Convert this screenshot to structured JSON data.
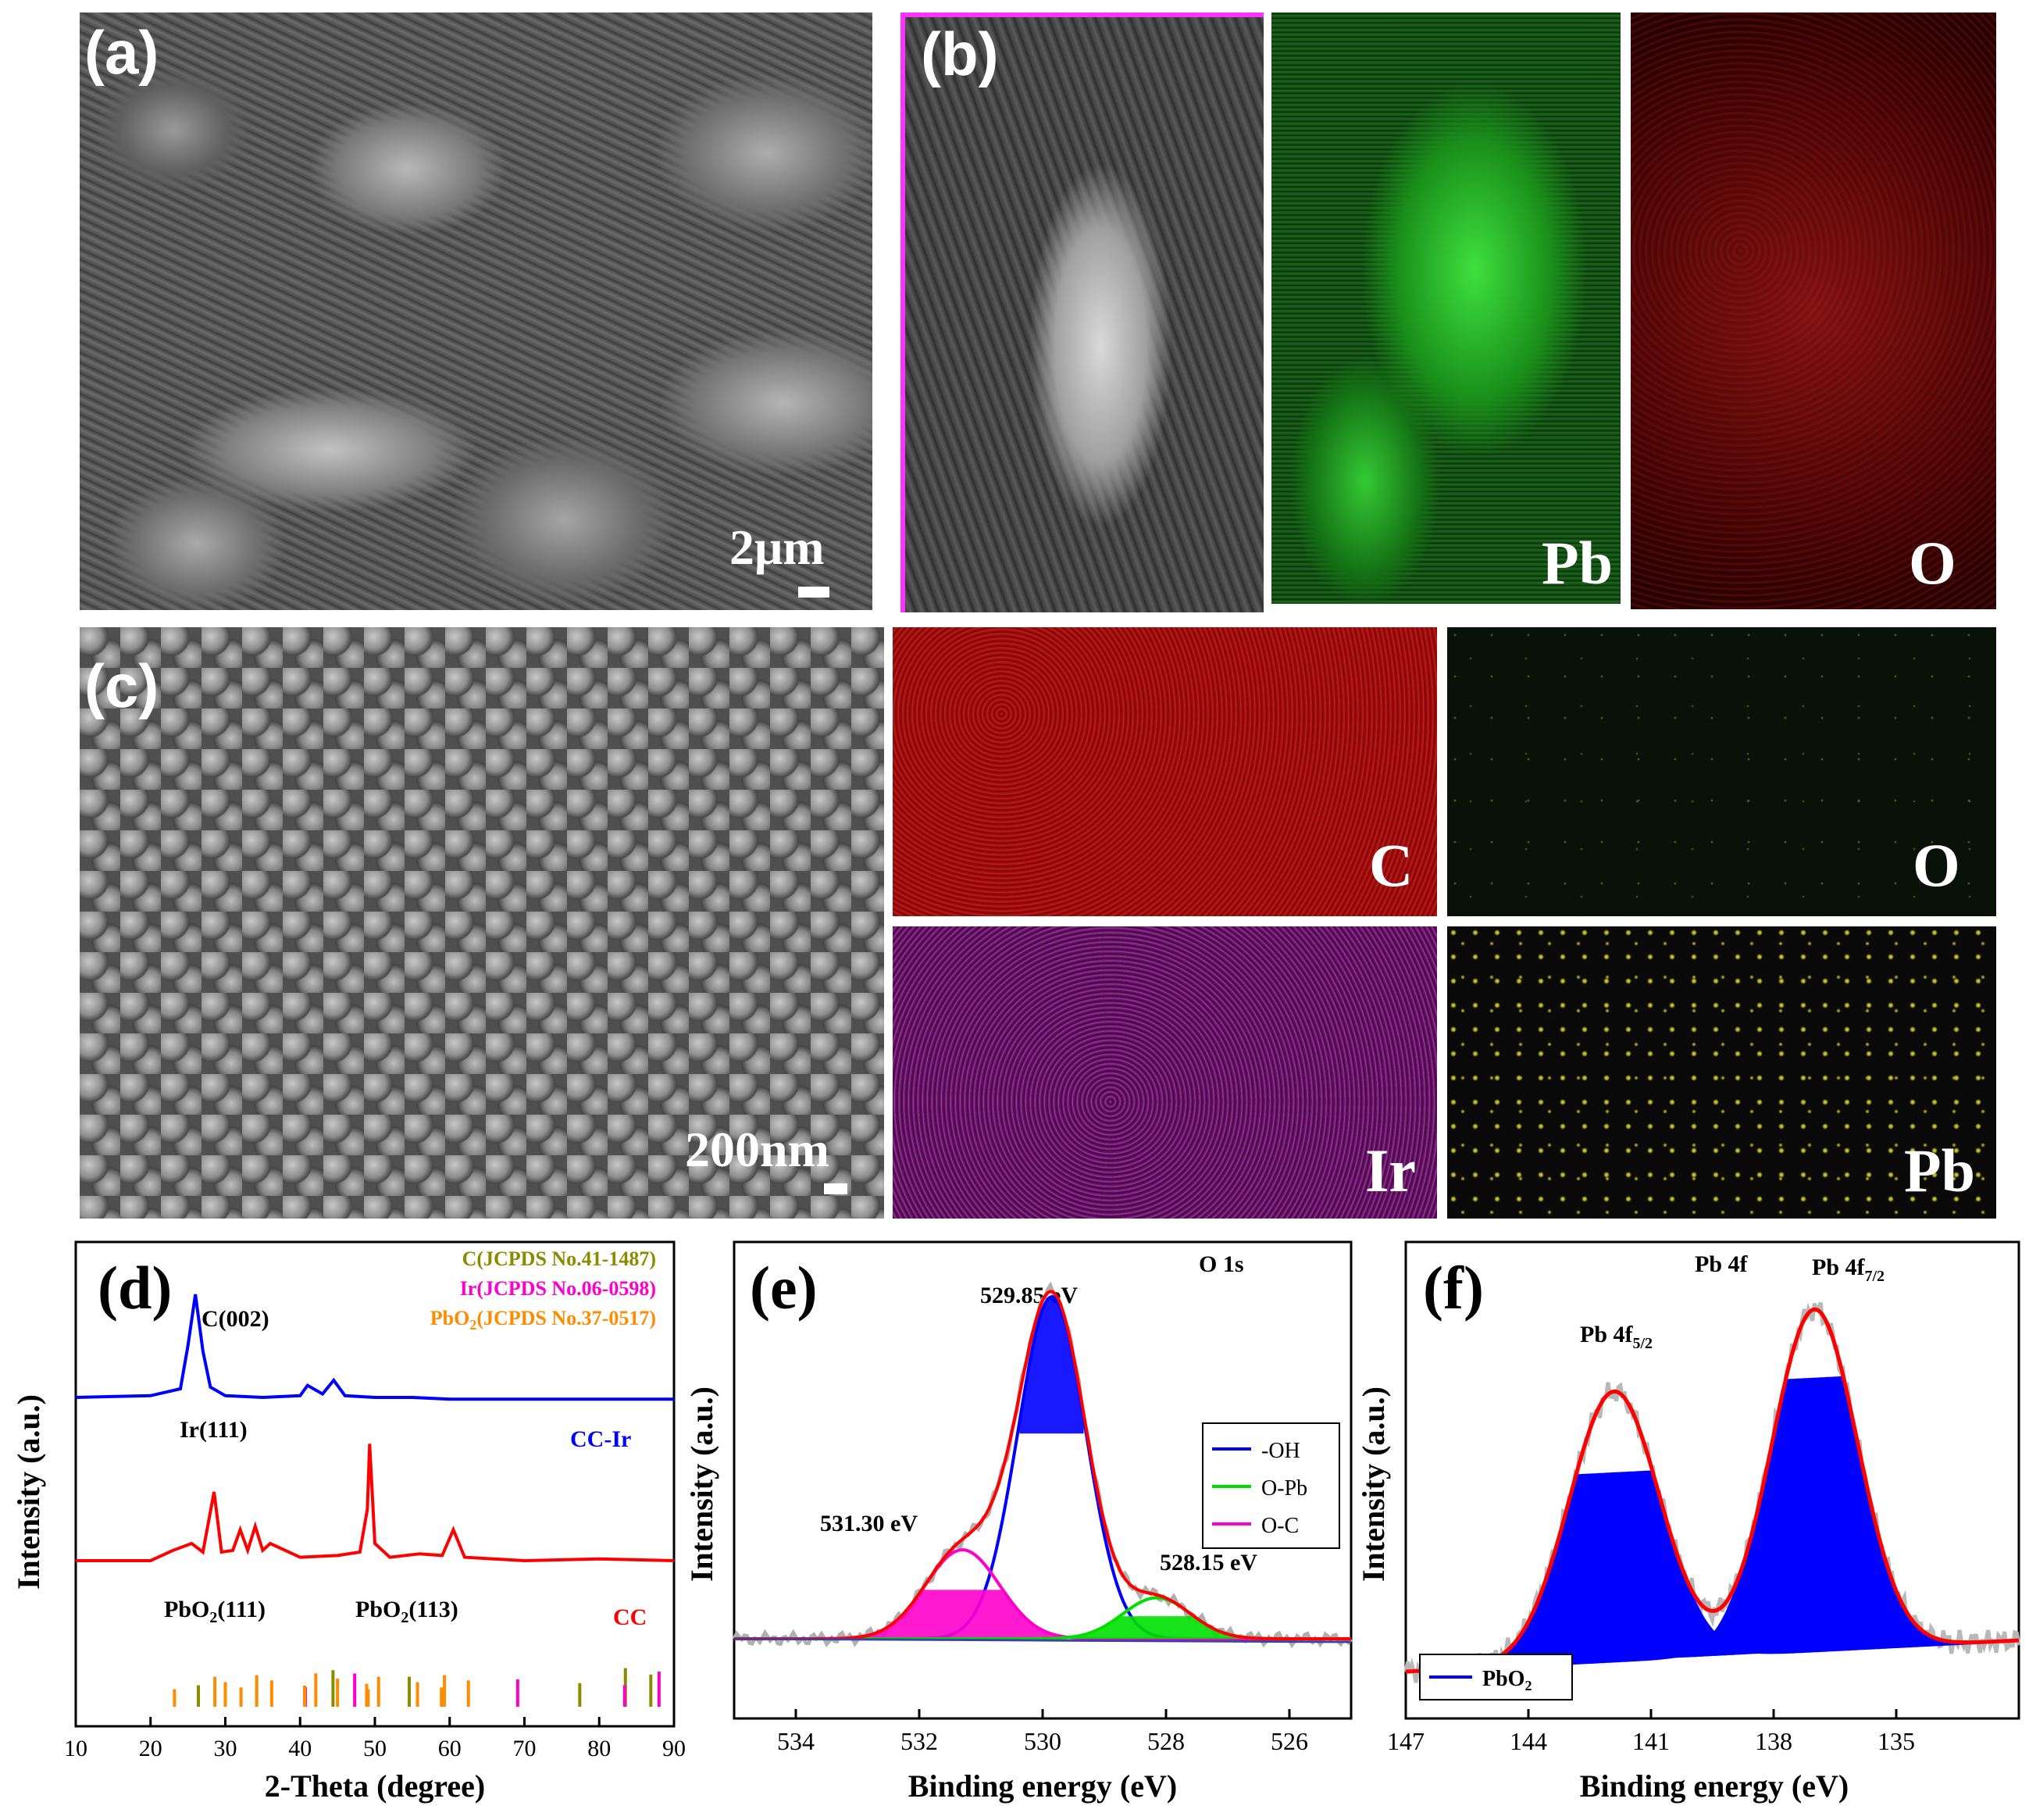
{
  "panels": {
    "a": {
      "letter": "(a)",
      "scale_label": "2μm"
    },
    "b": {
      "letter": "(b)",
      "map_labels": [
        "Pb",
        "O"
      ]
    },
    "c": {
      "letter": "(c)",
      "scale_label": "200nm",
      "map_labels": [
        "C",
        "O",
        "Ir",
        "Pb"
      ]
    },
    "d": {
      "letter": "(d)"
    },
    "e": {
      "letter": "(e)"
    },
    "f": {
      "letter": "(f)"
    }
  },
  "colors": {
    "blue": "#0000ff",
    "red": "#ff0000",
    "green": "#00e000",
    "magenta": "#ff00cc",
    "olive": "#8b8b00",
    "orange": "#ff8c00",
    "pb_map": "#22c922",
    "o_map": "#d01515",
    "c_map": "#cc1111",
    "ir_map": "#b020b0",
    "pb_map2": "#e6e040"
  },
  "chart_data": [
    {
      "id": "d",
      "type": "line",
      "xlabel": "2-Theta (degree)",
      "ylabel": "Intensity (a.u.)",
      "xlim": [
        10,
        90
      ],
      "xticks": [
        10,
        20,
        30,
        40,
        50,
        60,
        70,
        80,
        90
      ],
      "legend": [
        "C(JCPDS No.41-1487)",
        "Ir(JCPDS No.06-0598)",
        "PbO2(JCPDS No.37-0517)"
      ],
      "annotations": [
        "C(002)",
        "Ir(111)",
        "CC-Ir",
        "PbO2(111)",
        "PbO2(113)",
        "CC"
      ],
      "series": [
        {
          "name": "CC-Ir",
          "x": [
            10,
            20,
            24,
            25,
            26,
            27,
            28,
            30,
            35,
            40,
            41,
            43,
            44.5,
            46,
            50,
            55,
            60,
            70,
            80,
            90
          ],
          "y": [
            0.5,
            0.6,
            1.0,
            3.5,
            6.5,
            3.2,
            1.1,
            0.6,
            0.5,
            0.6,
            1.2,
            0.7,
            1.5,
            0.6,
            0.5,
            0.5,
            0.4,
            0.4,
            0.4,
            0.4
          ]
        },
        {
          "name": "CC",
          "x": [
            10,
            20,
            23,
            25.5,
            27,
            28.5,
            29.5,
            31,
            32,
            33,
            34,
            35,
            36,
            40,
            45,
            48,
            49,
            49.3,
            50,
            52,
            56,
            59,
            60.5,
            62,
            70,
            80,
            90
          ],
          "y": [
            1.0,
            1.0,
            1.6,
            2.0,
            1.5,
            5.0,
            1.5,
            1.6,
            2.8,
            1.6,
            3.0,
            1.6,
            2.0,
            1.2,
            1.3,
            1.5,
            4.0,
            7.8,
            2.0,
            1.2,
            1.4,
            1.3,
            2.8,
            1.2,
            1.0,
            1.1,
            1.0
          ]
        }
      ],
      "reference_lines": {
        "C": [
          26.4,
          44.4,
          54.6,
          77.4,
          83.5,
          86.9
        ],
        "Ir": [
          40.7,
          47.3,
          69.1,
          83.4,
          88.0
        ],
        "PbO2": [
          23.2,
          28.6,
          30.0,
          32.1,
          34.2,
          36.2,
          40.6,
          42.1,
          45.0,
          48.9,
          49.1,
          50.5,
          55.7,
          58.9,
          59.3,
          62.5
        ]
      }
    },
    {
      "id": "e",
      "type": "line",
      "xlabel": "Binding energy (eV)",
      "ylabel": "Intensity (a.u.)",
      "xlim": [
        535,
        525
      ],
      "xticks": [
        534,
        532,
        530,
        528,
        526
      ],
      "title": "O 1s",
      "annotations": [
        "529.85 eV",
        "531.30 eV",
        "528.15 eV"
      ],
      "legend": [
        "-OH",
        "O-Pb",
        "O-C"
      ],
      "peaks": [
        {
          "name": "-OH",
          "center": 529.85,
          "height": 1.0,
          "sigma": 0.55,
          "color": "#0000ff"
        },
        {
          "name": "O-C",
          "center": 531.3,
          "height": 0.26,
          "sigma": 0.6,
          "color": "#ff00cc"
        },
        {
          "name": "O-Pb",
          "center": 528.15,
          "height": 0.12,
          "sigma": 0.55,
          "color": "#00e000"
        }
      ]
    },
    {
      "id": "f",
      "type": "line",
      "xlabel": "Binding energy (eV)",
      "ylabel": "Intensity (a.u.)",
      "xlim": [
        147,
        132
      ],
      "xticks": [
        147,
        144,
        141,
        138,
        135
      ],
      "title": "Pb 4f",
      "annotations": [
        "Pb 4f5/2",
        "Pb 4f7/2"
      ],
      "legend": [
        "PbO2"
      ],
      "peaks": [
        {
          "name": "Pb 4f5/2",
          "center": 141.9,
          "height": 0.75,
          "sigma": 1.1
        },
        {
          "name": "Pb 4f7/2",
          "center": 137.0,
          "height": 0.95,
          "sigma": 1.05
        }
      ]
    }
  ],
  "d_text": {
    "letter": "(d)",
    "xlabel": "2-Theta (degree)",
    "ylabel": "Intensity (a.u.)",
    "legend_c": "C(JCPDS No.41-1487)",
    "legend_ir": "Ir(JCPDS No.06-0598)",
    "legend_pbo2_main": "PbO",
    "legend_pbo2_sub": "2",
    "legend_pbo2_rest": "(JCPDS No.37-0517)",
    "c002": "C(002)",
    "ir111": "Ir(111)",
    "ccir": "CC-Ir",
    "pbo2_111_main": "PbO",
    "pbo2_111_sub": "2",
    "pbo2_111_rest": "(111)",
    "pbo2_113_main": "PbO",
    "pbo2_113_sub": "2",
    "pbo2_113_rest": "(113)",
    "cc": "CC"
  },
  "e_text": {
    "letter": "(e)",
    "xlabel": "Binding energy (eV)",
    "ylabel": "Intensity (a.u.)",
    "title": "O 1s",
    "p1": "529.85 eV",
    "p2": "531.30 eV",
    "p3": "528.15 eV",
    "leg1": "-OH",
    "leg2": "O-Pb",
    "leg3": "O-C"
  },
  "f_text": {
    "letter": "(f)",
    "xlabel": "Binding energy (eV)",
    "ylabel": "Intensity (a.u.)",
    "title": "Pb 4f",
    "p52_main": "Pb 4f",
    "p52_sub": "5/2",
    "p72_main": "Pb 4f",
    "p72_sub": "7/2",
    "leg": "PbO",
    "leg_sub": "2"
  }
}
